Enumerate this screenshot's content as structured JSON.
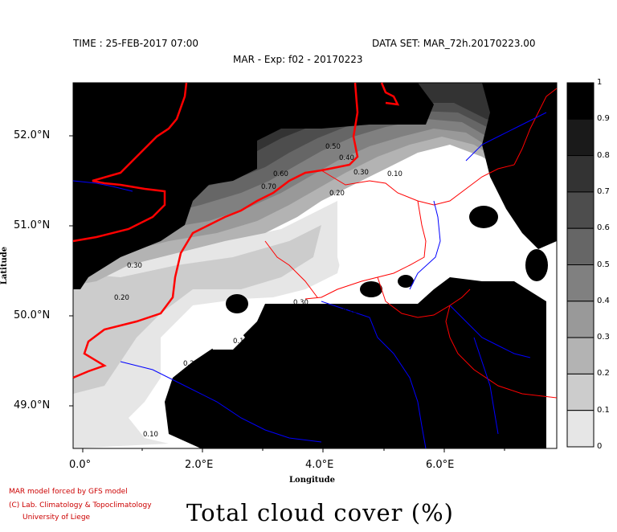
{
  "header": {
    "time": "TIME : 25-FEB-2017 07:00",
    "dataset": "DATA SET: MAR_72h.20170223.00",
    "experiment": "MAR - Exp: f02 - 20170223"
  },
  "axes": {
    "xlabel": "Longitude",
    "ylabel": "Latitude",
    "xticks": [
      "0.0°",
      "2.0°E",
      "4.0°E",
      "6.0°E"
    ],
    "yticks": [
      "52.0°N",
      "51.0°N",
      "50.0°N",
      "49.0°N"
    ]
  },
  "colorbar": {
    "labels": [
      "1",
      "0.9",
      "0.8",
      "0.7",
      "0.6",
      "0.5",
      "0.4",
      "0.3",
      "0.2",
      "0.1",
      "0"
    ],
    "colors": [
      "#000000",
      "#1a1a1a",
      "#333333",
      "#4d4d4d",
      "#666666",
      "#808080",
      "#999999",
      "#b3b3b3",
      "#cccccc",
      "#e6e6e6"
    ]
  },
  "contour_labels": [
    "0.30",
    "0.20",
    "0.10",
    "0.40",
    "0.50",
    "0.60",
    "0.70",
    "0.30",
    "0.10",
    "0.20",
    "0.30",
    "0.10",
    "0.10",
    "0.20",
    "0.10"
  ],
  "credits": {
    "line1": "MAR model forced by GFS model",
    "line2": "(C) Lab. Climatology & Topoclimatology",
    "line3": "University of Liege"
  },
  "title": "Total cloud cover (%)",
  "map_colors": {
    "coastline": "#ff0000",
    "borders": "#ff0000",
    "rivers": "#0000ff"
  }
}
